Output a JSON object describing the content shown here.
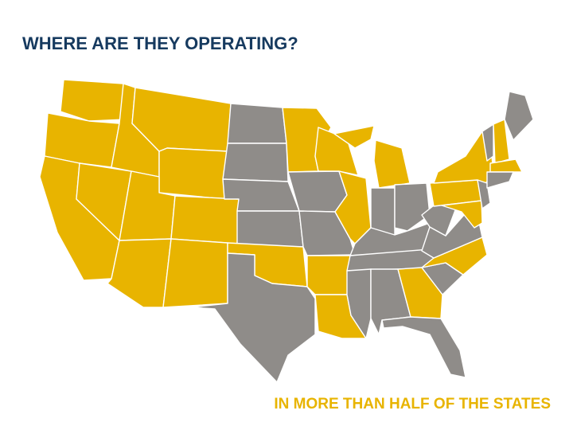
{
  "title": "WHERE ARE THEY OPERATING?",
  "caption": "IN MORE THAN HALF OF THE STATES"
}
